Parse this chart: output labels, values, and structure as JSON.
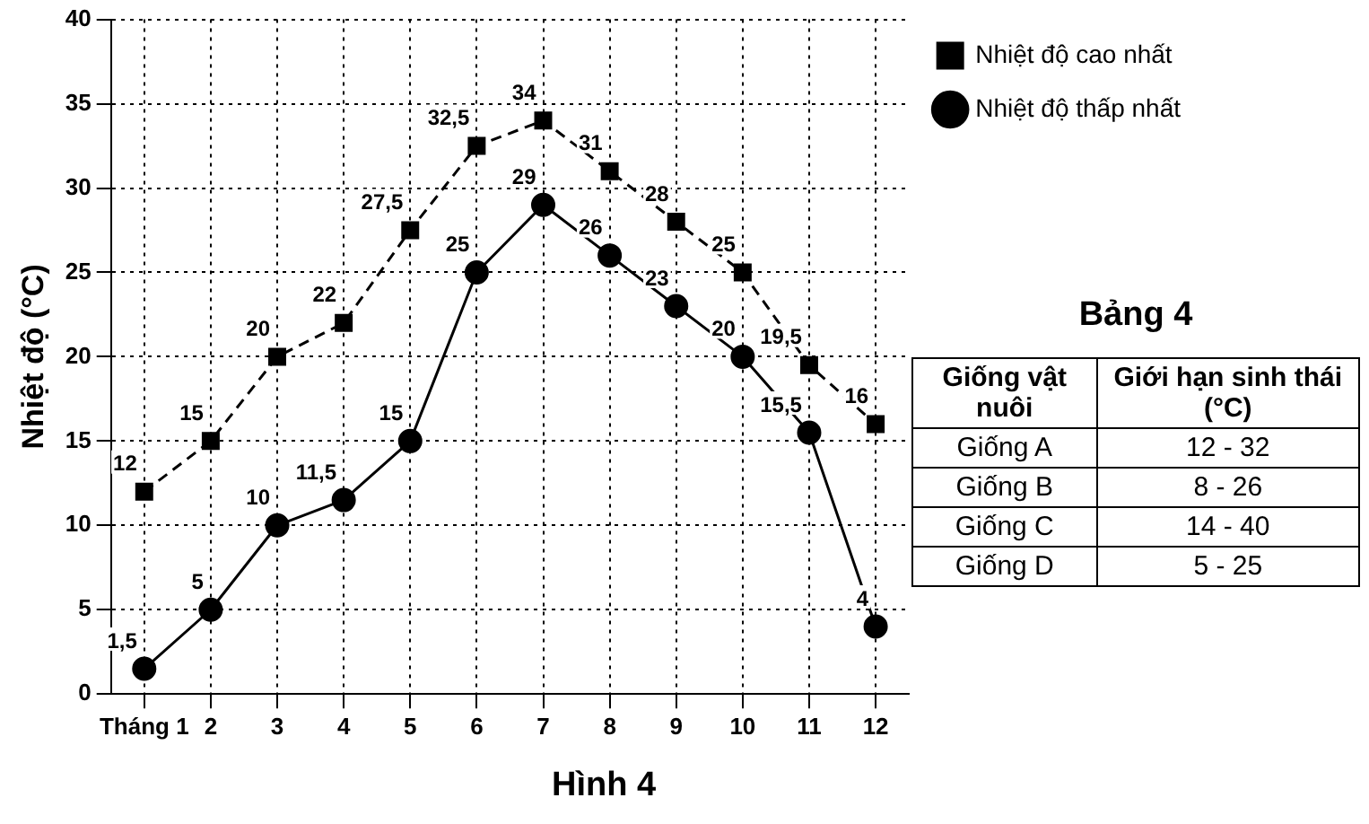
{
  "chart_data": [
    {
      "type": "line",
      "title": "Hình 4",
      "ylabel": "Nhiệt độ (°C)",
      "categories": [
        "Tháng 1",
        "2",
        "3",
        "4",
        "5",
        "6",
        "7",
        "8",
        "9",
        "10",
        "11",
        "12"
      ],
      "series": [
        {
          "name": "Nhiệt độ cao nhất",
          "color": "#000000",
          "marker": "square",
          "line_style": "dashed",
          "values": [
            12,
            15,
            20,
            22,
            27.5,
            32.5,
            34,
            31,
            28,
            25,
            19.5,
            16
          ],
          "value_labels": [
            "12",
            "15",
            "20",
            "22",
            "27,5",
            "32,5",
            "34",
            "31",
            "28",
            "25",
            "19,5",
            "16"
          ]
        },
        {
          "name": "Nhiệt độ thấp nhất",
          "color": "#000000",
          "marker": "circle",
          "line_style": "solid",
          "values": [
            1.5,
            5,
            10,
            11.5,
            15,
            25,
            29,
            26,
            23,
            20,
            15.5,
            4
          ],
          "value_labels": [
            "1,5",
            "5",
            "10",
            "11,5",
            "15",
            "25",
            "29",
            "26",
            "23",
            "20",
            "15,5",
            "4"
          ]
        }
      ],
      "ylim": [
        0,
        40
      ],
      "yticks": [
        0,
        5,
        10,
        15,
        20,
        25,
        30,
        35,
        40
      ],
      "grid": true,
      "legend": "top right"
    },
    {
      "type": "other",
      "title": "Bảng 4",
      "annotations": [
        "Giống vật nuôi",
        "Giới hạn sinh thái (°C)",
        "Giống A",
        "12 - 32",
        "Giống B",
        "8 - 26",
        "Giống C",
        "14 - 40",
        "Giống D",
        "5 - 25"
      ]
    }
  ]
}
